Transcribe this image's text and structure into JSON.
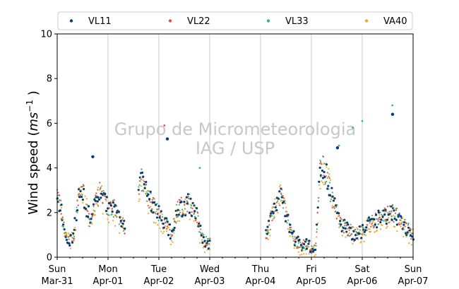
{
  "chart_data": {
    "type": "scatter",
    "title": "",
    "xlabel": "",
    "ylabel": "Wind speed (ms⁻¹)",
    "ylim": [
      0,
      10
    ],
    "yticks": [
      0,
      2,
      4,
      6,
      8,
      10
    ],
    "xlim": [
      "2019-03-31 00:00",
      "2019-04-07 00:00"
    ],
    "xticks": [
      {
        "day": "Sun",
        "date": "Mar-31"
      },
      {
        "day": "Mon",
        "date": "Apr-01"
      },
      {
        "day": "Tue",
        "date": "Apr-02"
      },
      {
        "day": "Wed",
        "date": "Apr-03"
      },
      {
        "day": "Thu",
        "date": "Apr-04"
      },
      {
        "day": "Fri",
        "date": "Apr-05"
      },
      {
        "day": "Sat",
        "date": "Apr-06"
      },
      {
        "day": "Sun",
        "date": "Apr-07"
      }
    ],
    "grid": "vertical lines at day boundaries",
    "legend_position": "top, above plot, 4 columns",
    "watermark": [
      "Grupo de Micrometeorologia",
      "IAG / USP"
    ],
    "series": [
      {
        "name": "VL11",
        "color": "#0b3c6e",
        "marker": "dot"
      },
      {
        "name": "VL22",
        "color": "#d9534f",
        "marker": "dot"
      },
      {
        "name": "VL33",
        "color": "#3cb371",
        "marker": "dot"
      },
      {
        "name": "VA40",
        "color": "#f5a623",
        "marker": "dot"
      }
    ],
    "profile_hours": [
      0,
      2,
      4,
      6,
      8,
      10,
      12,
      14,
      16,
      18,
      20,
      22,
      24,
      26,
      28,
      30,
      32,
      34,
      36,
      38,
      40,
      42,
      44,
      46,
      48,
      50,
      52,
      54,
      56,
      58,
      60,
      62,
      64,
      66,
      68,
      70,
      72,
      74,
      76,
      78,
      80,
      82,
      84,
      86,
      88,
      90,
      92,
      94,
      96,
      98,
      100,
      102,
      104,
      106,
      108,
      110,
      112,
      114,
      116,
      118,
      120,
      122,
      124,
      126,
      128,
      130,
      132,
      134,
      136,
      138,
      140,
      142,
      144,
      146,
      148,
      150,
      152,
      154,
      156,
      158,
      160,
      162,
      164,
      166,
      168
    ],
    "profile_speed": [
      2.8,
      2.0,
      0.9,
      0.8,
      1.1,
      2.6,
      3.0,
      2.2,
      1.6,
      2.4,
      2.9,
      2.6,
      2.2,
      2.3,
      2.0,
      1.6,
      1.3,
      null,
      null,
      3.2,
      3.4,
      2.9,
      2.5,
      2.2,
      1.9,
      1.6,
      1.4,
      1.0,
      1.9,
      2.3,
      2.2,
      2.5,
      2.1,
      1.9,
      0.9,
      0.7,
      0.6,
      null,
      null,
      null,
      null,
      null,
      null,
      null,
      null,
      null,
      null,
      null,
      null,
      0.8,
      1.4,
      2.0,
      2.6,
      2.8,
      2.0,
      1.2,
      0.8,
      0.6,
      0.5,
      0.6,
      0.4,
      0.5,
      3.8,
      4.0,
      3.4,
      2.6,
      2.0,
      1.5,
      1.3,
      1.2,
      1.0,
      1.1,
      1.2,
      1.4,
      1.5,
      1.6,
      1.8,
      1.8,
      1.9,
      2.0,
      1.9,
      1.6,
      1.4,
      1.2,
      1.0
    ],
    "peaks": [
      {
        "series": "VL11",
        "hour": 16.8,
        "value": 4.5
      },
      {
        "series": "VL22",
        "hour": 50.6,
        "value": 5.9
      },
      {
        "series": "VL11",
        "hour": 52.0,
        "value": 5.3
      },
      {
        "series": "VL33",
        "hour": 67.3,
        "value": 4.0
      },
      {
        "series": "VL11",
        "hour": 132.3,
        "value": 4.9
      },
      {
        "series": "VL33",
        "hour": 133.0,
        "value": 5.0
      },
      {
        "series": "VL33",
        "hour": 139.5,
        "value": 5.8
      },
      {
        "series": "VL33",
        "hour": 144.0,
        "value": 6.1
      },
      {
        "series": "VL33",
        "hour": 158.2,
        "value": 6.8
      },
      {
        "series": "VL11",
        "hour": 158.3,
        "value": 6.4
      }
    ]
  }
}
